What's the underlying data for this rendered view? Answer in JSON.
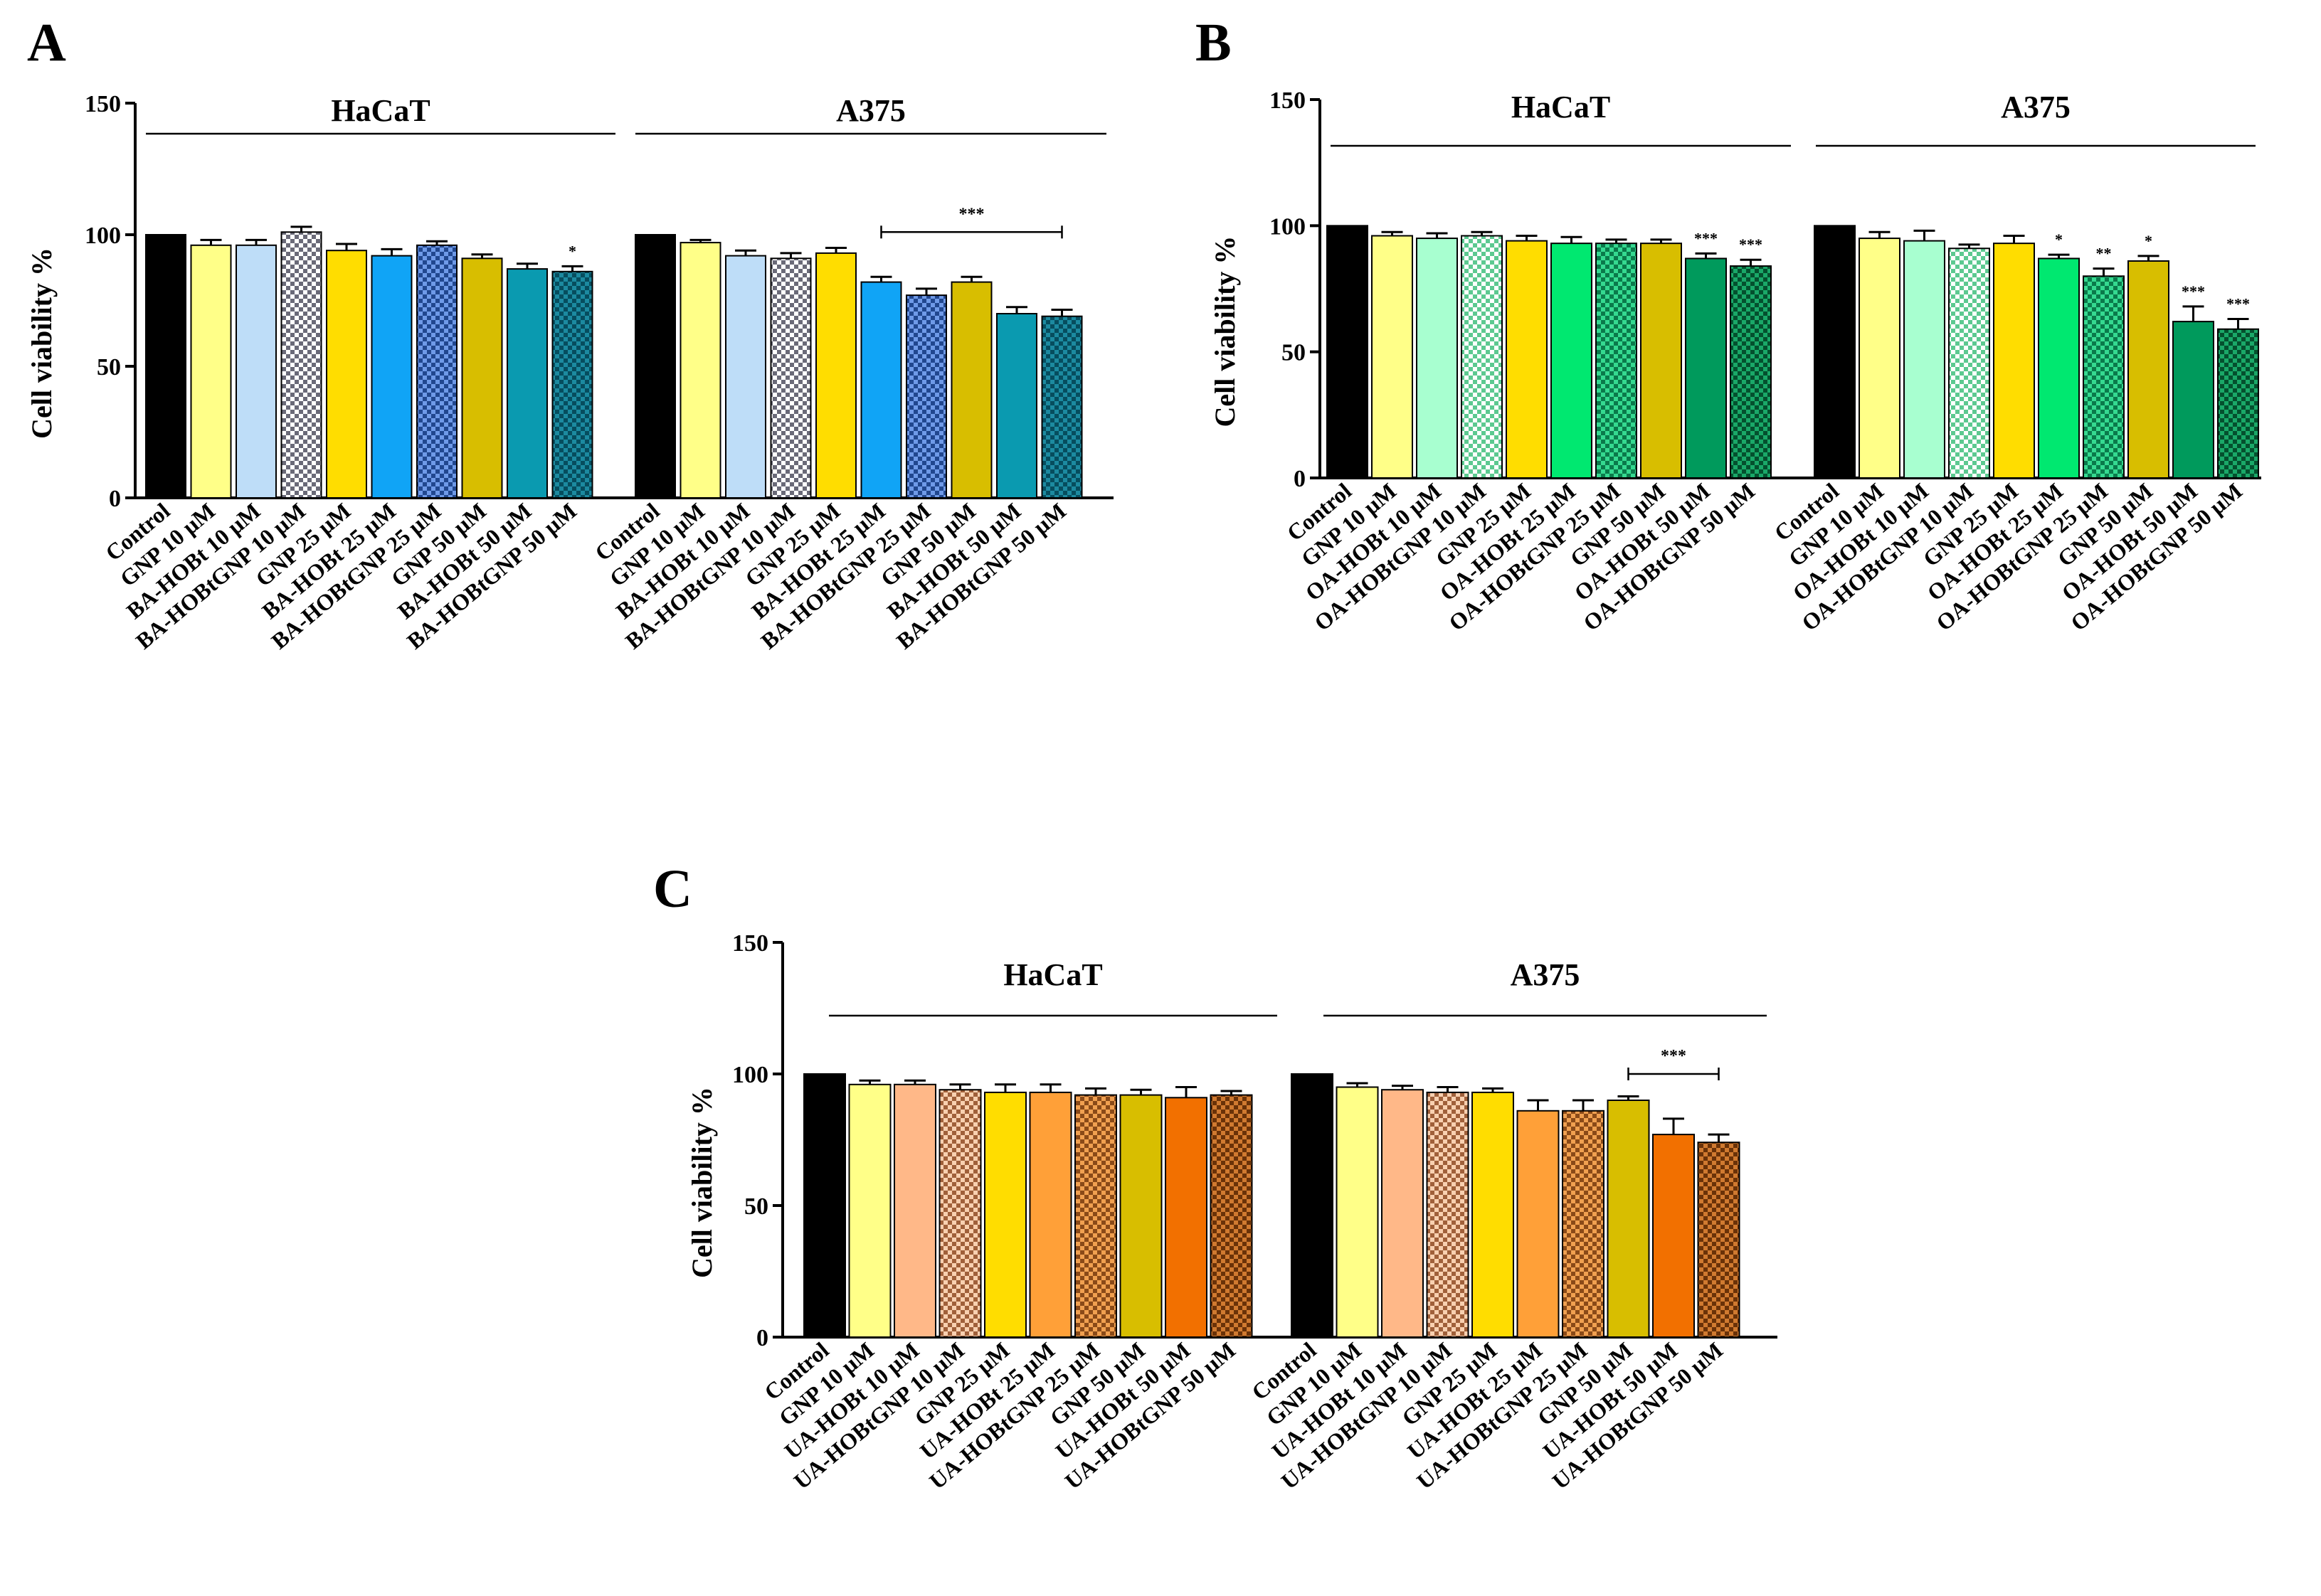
{
  "figure": {
    "colors": {
      "control": "#000000",
      "yellow_light": "#FFFF88",
      "gold": "#FFDD00",
      "olive": "#D8BE00",
      "pale_blue": "#BEDDF8",
      "azure": "#10A4F6",
      "teal": "#0A9AB0",
      "pale_green": "#A8FFD0",
      "green": "#00E870",
      "dark_green": "#009A5C",
      "peach": "#FFB888",
      "orange": "#FFA038",
      "dark_orange": "#F27000"
    }
  },
  "chart_data": [
    {
      "panel": "A",
      "type": "bar",
      "ylabel": "Cell viability %",
      "ylim": [
        0,
        150
      ],
      "yticks": [
        0,
        50,
        100,
        150
      ],
      "groups": [
        {
          "name": "HaCaT",
          "categories": [
            "Control",
            "GNP 10 μM",
            "BA-HOBt 10  μM",
            "BA-HOBtGNP 10 μM",
            "GNP 25 μM",
            "BA-HOBt 25  μM",
            "BA-HOBtGNP 25 μM",
            "GNP 50 μM",
            "BA-HOBt 50  μM",
            "BA-HOBtGNP 50 μM"
          ],
          "values": [
            100,
            96,
            96,
            101,
            94,
            92,
            96,
            91,
            87,
            86
          ],
          "errors": [
            0,
            2,
            2,
            2,
            2.5,
            2.5,
            1.5,
            1.5,
            2,
            2
          ],
          "significance": [
            null,
            null,
            null,
            null,
            null,
            null,
            null,
            null,
            null,
            "*"
          ]
        },
        {
          "name": "A375",
          "categories": [
            "Control",
            "GNP 10  μM",
            "BA-HOBt 10  μM",
            "BA-HOBtGNP 10 μM",
            "GNP 25  μM",
            "BA-HOBt 25  μM",
            "BA-HOBtGNP 25 μM",
            "GNP 50  μM",
            "BA-HOBt 50  μM",
            "BA-HOBtGNP 50 μM"
          ],
          "values": [
            100,
            97,
            92,
            91,
            93,
            82,
            77,
            82,
            70,
            69
          ],
          "errors": [
            0,
            1,
            2,
            2,
            2,
            2,
            2.5,
            2,
            2.5,
            2.5
          ],
          "significance": [
            null,
            null,
            null,
            null,
            null,
            null,
            null,
            null,
            null,
            null
          ],
          "bracket": {
            "label": "***",
            "from": 5,
            "to": 9,
            "y": 101
          }
        }
      ]
    },
    {
      "panel": "B",
      "type": "bar",
      "ylabel": "Cell viability %",
      "ylim": [
        0,
        150
      ],
      "yticks": [
        0,
        50,
        100,
        150
      ],
      "groups": [
        {
          "name": "HaCaT",
          "categories": [
            "Control",
            "GNP 10 μM",
            "OA-HOBt 10  μM",
            "OA-HOBtGNP 10 μM",
            "GNP 25 μM",
            "OA-HOBt 25  μM",
            "OA-HOBtGNP 25 μM",
            "GNP 50 μM",
            "OA-HOBt 50  μM",
            "OA-HOBtGNP 50 μM"
          ],
          "values": [
            100,
            96,
            95,
            96,
            94,
            93,
            93,
            93,
            87,
            84
          ],
          "errors": [
            0,
            1.5,
            2,
            1.5,
            2,
            2.5,
            1.5,
            1.5,
            2,
            2.5
          ],
          "significance": [
            null,
            null,
            null,
            null,
            null,
            null,
            null,
            null,
            "***",
            "***"
          ]
        },
        {
          "name": "A375",
          "categories": [
            "Control",
            "GNP 10 μM",
            "OA-HOBt 10  μM",
            "OA-HOBtGNP 10 μM",
            "GNP 25 μM",
            "OA-HOBt 25  μM",
            "OA-HOBtGNP 25 μM",
            "GNP 50 μM",
            "OA-HOBt 50  μM",
            "OA-HOBtGNP 50 μM"
          ],
          "values": [
            100,
            95,
            94,
            91,
            93,
            87,
            80,
            86,
            62,
            59
          ],
          "errors": [
            0,
            2.5,
            4,
            1.5,
            3,
            1.5,
            3,
            2,
            6,
            4
          ],
          "significance": [
            null,
            null,
            null,
            null,
            null,
            "*",
            "**",
            "*",
            "***",
            "***"
          ]
        }
      ]
    },
    {
      "panel": "C",
      "type": "bar",
      "ylabel": "Cell viability %",
      "ylim": [
        0,
        150
      ],
      "yticks": [
        0,
        50,
        100,
        150
      ],
      "groups": [
        {
          "name": "HaCaT",
          "categories": [
            "Control",
            "GNP 10 μM",
            "UA-HOBt 10 μM",
            "UA-HOBtGNP 10 μM",
            "GNP 25 μM",
            "UA-HOBt 25 μM",
            "UA-HOBtGNP 25 μM",
            "GNP 50 μM",
            "UA-HOBt 50 μM",
            "UA-HOBtGNP 50 μM"
          ],
          "values": [
            100,
            96,
            96,
            94,
            93,
            93,
            92,
            92,
            91,
            92
          ],
          "errors": [
            0,
            1.5,
            1.5,
            2,
            3,
            3,
            2.5,
            2,
            4,
            1.5
          ],
          "significance": [
            null,
            null,
            null,
            null,
            null,
            null,
            null,
            null,
            null,
            null
          ]
        },
        {
          "name": "A375",
          "categories": [
            "Control",
            "GNP 10 μM",
            "UA-HOBt 10 μM",
            "UA-HOBtGNP 10 μM",
            "GNP 25 μM",
            "UA-HOBt 25 μM",
            "UA-HOBtGNP 25 μM",
            "GNP 50 μM",
            "UA-HOBt 50 μM",
            "UA-HOBtGNP 50 μM"
          ],
          "values": [
            100,
            95,
            94,
            93,
            93,
            86,
            86,
            90,
            77,
            74
          ],
          "errors": [
            0,
            1.5,
            1.5,
            2,
            1.5,
            4,
            4,
            1.5,
            6,
            3
          ],
          "significance": [
            null,
            null,
            null,
            null,
            null,
            null,
            null,
            null,
            null,
            null
          ],
          "bracket": {
            "label": "***",
            "from": 7,
            "to": 9,
            "y": 100
          }
        }
      ]
    }
  ]
}
